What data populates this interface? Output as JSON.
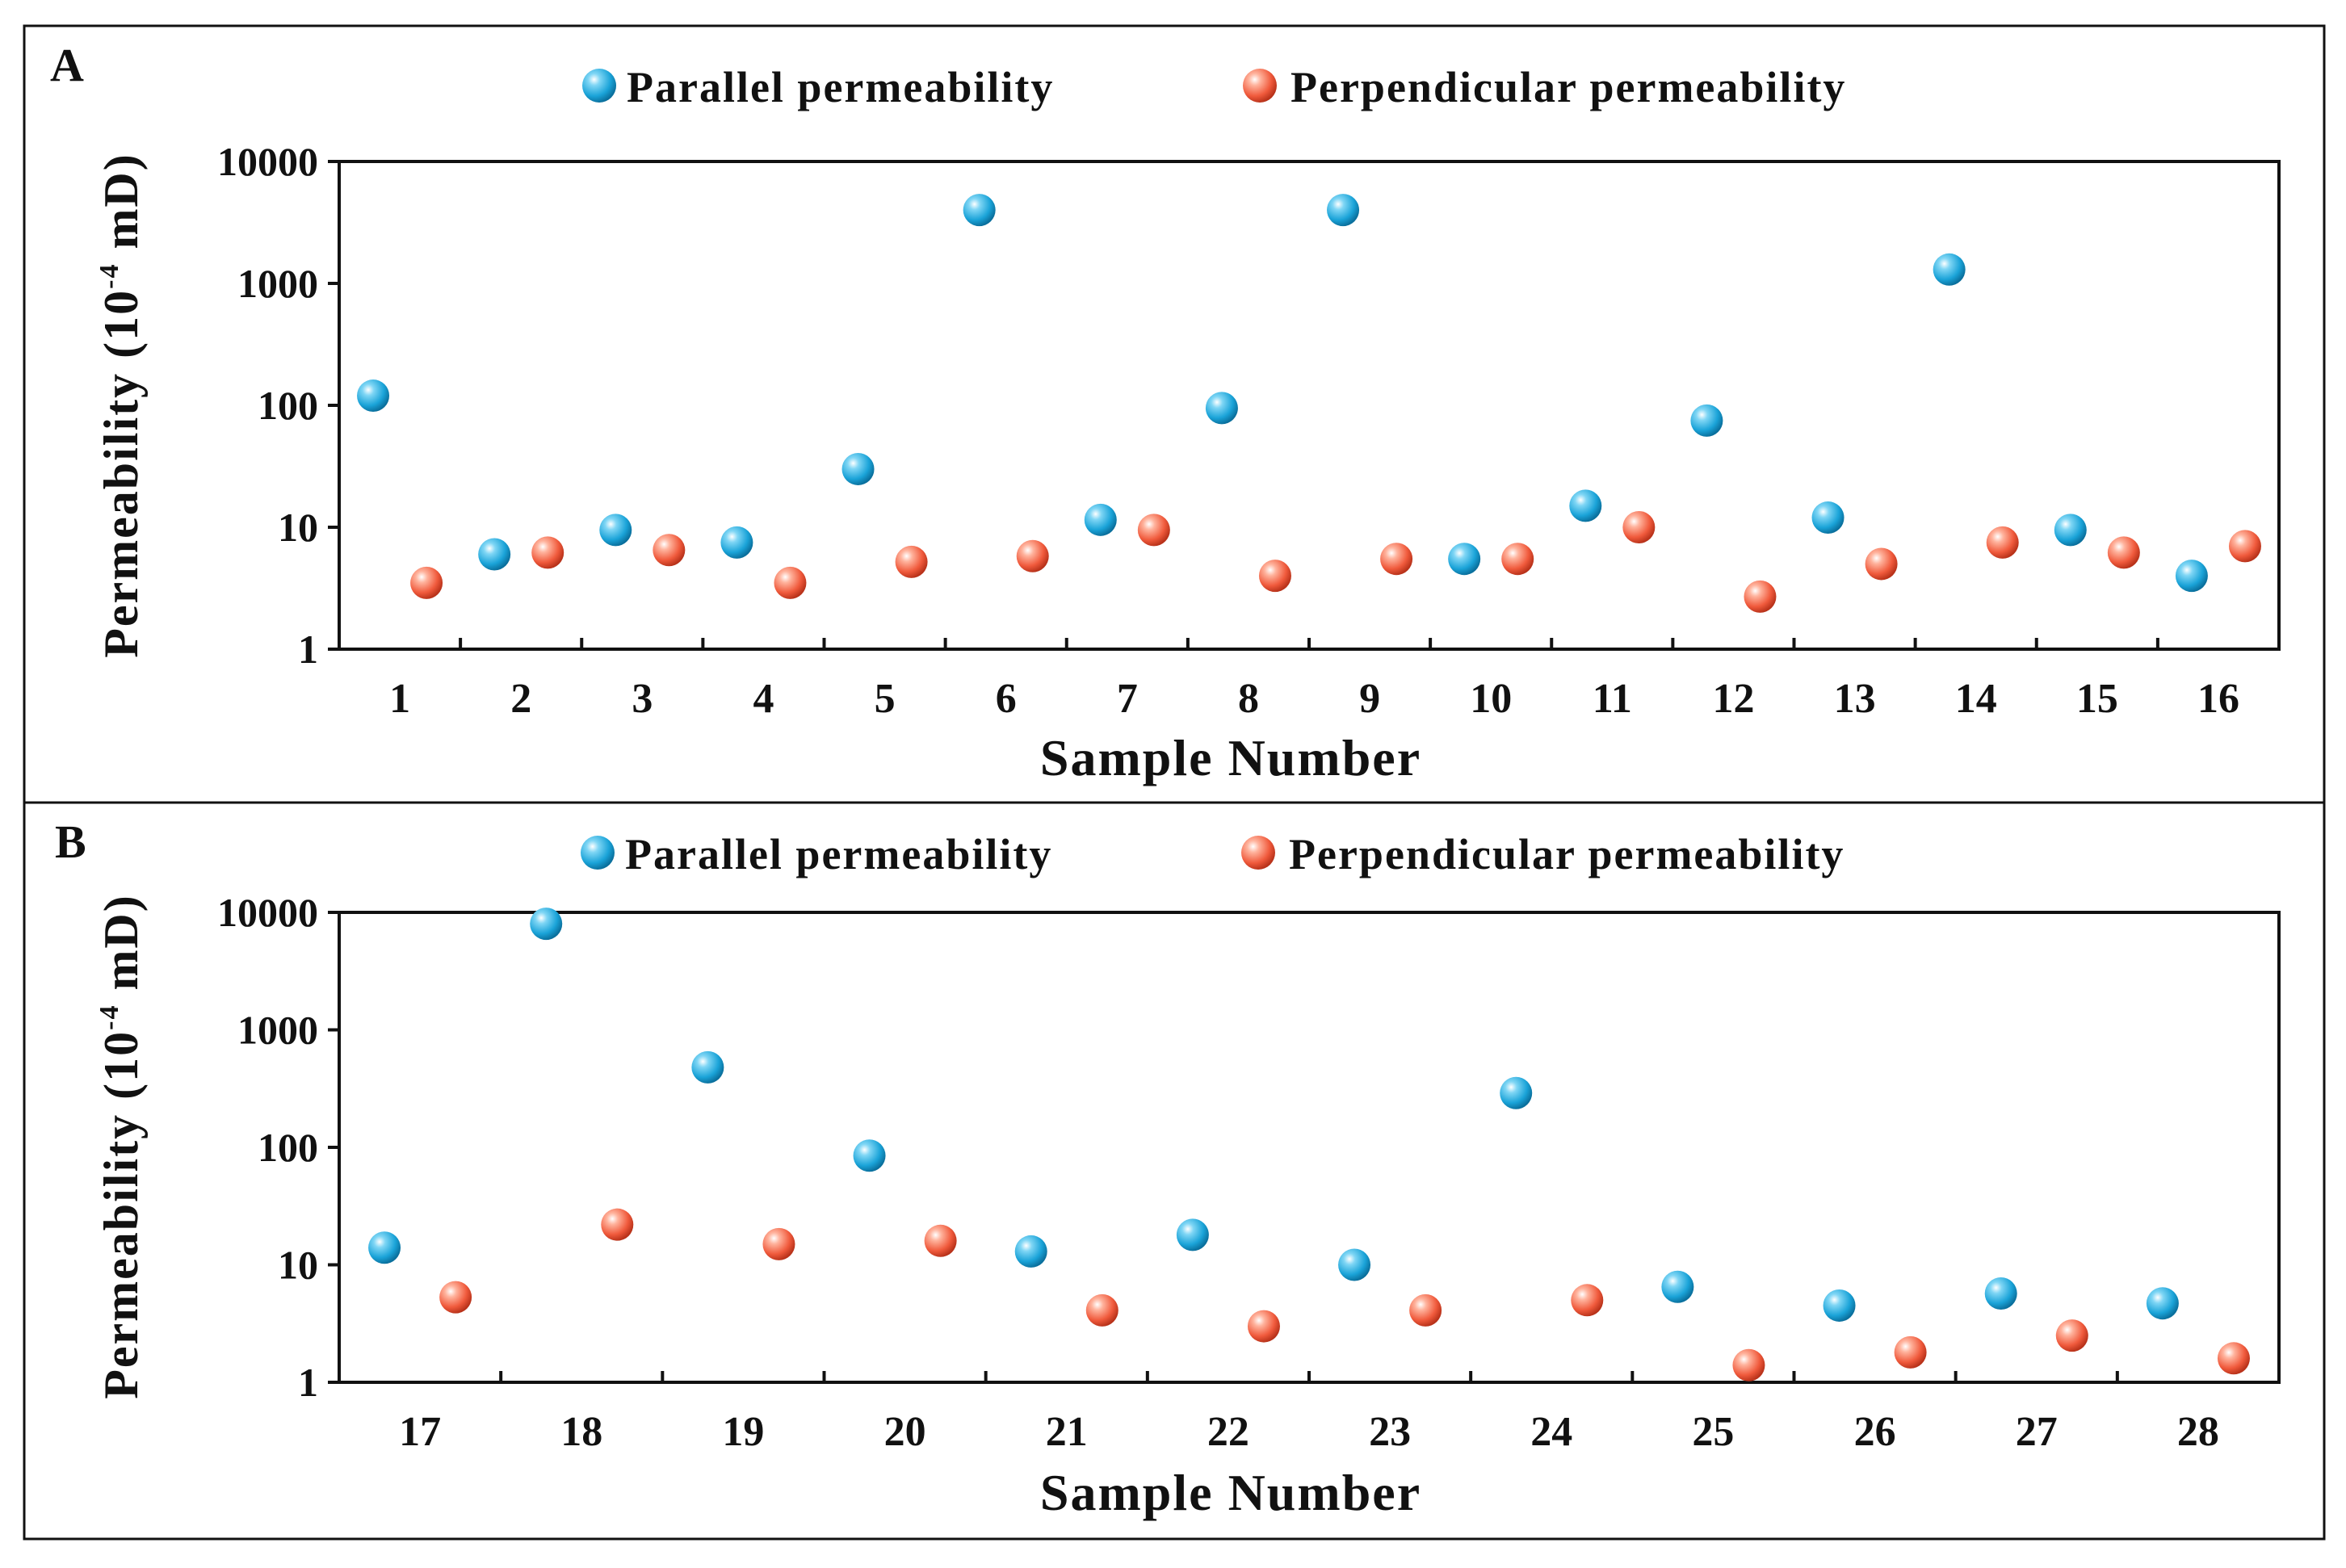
{
  "colors": {
    "parallel": "#1aa3d8",
    "parallel_dark": "#0a6f9c",
    "perpendicular": "#f05a3c",
    "perpendicular_dark": "#b8321a",
    "ink": "#111111"
  },
  "chart_data": [
    {
      "type": "scatter",
      "panel_label": "A",
      "title": "",
      "xlabel": "Sample Number",
      "ylabel_main": "Permeability (10",
      "ylabel_sup": "-4",
      "ylabel_unit": " mD)",
      "yscale": "log",
      "ylim": [
        1,
        10000
      ],
      "yticks": [
        "1",
        "10",
        "100",
        "1000",
        "10000"
      ],
      "categories": [
        "1",
        "2",
        "3",
        "4",
        "5",
        "6",
        "7",
        "8",
        "9",
        "10",
        "11",
        "12",
        "13",
        "14",
        "15",
        "16"
      ],
      "legend": [
        "Parallel permeability",
        "Perpendicular permeability"
      ],
      "legend_position": "top",
      "series": [
        {
          "name": "Parallel permeability",
          "values": [
            120,
            6,
            9.5,
            7.5,
            30,
            4000,
            11.5,
            95,
            4000,
            5.5,
            15,
            75,
            12,
            1300,
            9.5,
            4
          ]
        },
        {
          "name": "Perpendicular permeability",
          "values": [
            3.5,
            6.2,
            6.5,
            3.5,
            5.2,
            5.8,
            9.5,
            4,
            5.5,
            5.5,
            10,
            2.7,
            5,
            7.5,
            6.2,
            7
          ]
        }
      ]
    },
    {
      "type": "scatter",
      "panel_label": "B",
      "title": "",
      "xlabel": "Sample Number",
      "ylabel_main": "Permeability (10",
      "ylabel_sup": "-4",
      "ylabel_unit": " mD)",
      "yscale": "log",
      "ylim": [
        1,
        10000
      ],
      "yticks": [
        "1",
        "10",
        "100",
        "1000",
        "10000"
      ],
      "categories": [
        "17",
        "18",
        "19",
        "20",
        "21",
        "22",
        "23",
        "24",
        "25",
        "26",
        "27",
        "28"
      ],
      "legend": [
        "Parallel permeability",
        "Perpendicular permeability"
      ],
      "legend_position": "top",
      "series": [
        {
          "name": "Parallel permeability",
          "values": [
            14,
            8000,
            480,
            85,
            13,
            18,
            10,
            290,
            6.5,
            4.5,
            5.7,
            4.7
          ]
        },
        {
          "name": "Perpendicular permeability",
          "values": [
            5.3,
            22,
            15,
            16,
            4.1,
            3,
            4.1,
            5,
            1.4,
            1.8,
            2.5,
            1.6
          ]
        }
      ]
    }
  ]
}
